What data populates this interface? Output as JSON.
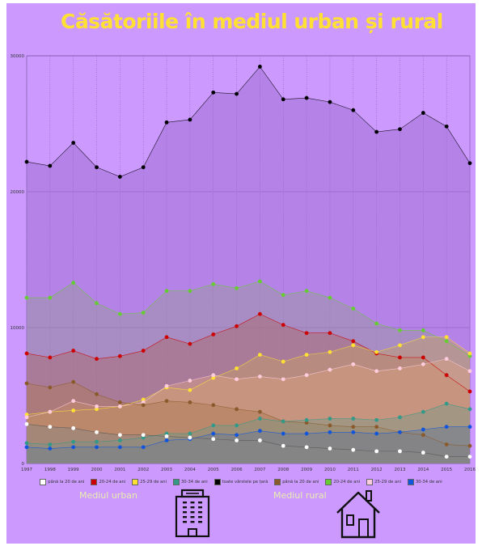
{
  "title": "Căsătoriile în mediul urban și rural",
  "labels": {
    "urban": "Mediul urban",
    "rural": "Mediul rural"
  },
  "icons": {
    "urban": "apartment-building-icon",
    "rural": "house-icon"
  },
  "colors": {
    "background": "#cc99ff",
    "title": "#ffe033"
  },
  "chart_data": {
    "type": "area",
    "x": [
      "1997",
      "1998",
      "1999",
      "2000",
      "2001",
      "2002",
      "2003",
      "2004",
      "2005",
      "2006",
      "2007",
      "2008",
      "2009",
      "2010",
      "2011",
      "2012",
      "2013",
      "2014",
      "2015",
      "2016"
    ],
    "ylim": [
      0,
      30000
    ],
    "yticks": [
      0,
      10000,
      20000,
      30000
    ],
    "grid": true,
    "legend_placement": "bottom",
    "series": [
      {
        "name": "toate vârstele pe țară",
        "color": "#000000",
        "fill": "#9966cc",
        "values": [
          22200,
          21900,
          23600,
          21800,
          21100,
          21800,
          25100,
          25300,
          27300,
          27200,
          29200,
          26800,
          26900,
          26600,
          26000,
          24400,
          24600,
          25800,
          24800,
          22100
        ]
      },
      {
        "name": "20-24 de ani",
        "color": "#66cc33",
        "fill": "#999999",
        "values": [
          12200,
          12200,
          13300,
          11800,
          11000,
          11100,
          12700,
          12700,
          13200,
          12900,
          13400,
          12400,
          12700,
          12200,
          11400,
          10300,
          9800,
          9800,
          9000,
          7900
        ]
      },
      {
        "name": "20-24 de ani",
        "color": "#cc0000",
        "fill": "#aa6666",
        "values": [
          8100,
          7800,
          8300,
          7700,
          7900,
          8300,
          9300,
          8800,
          9500,
          10100,
          11000,
          10200,
          9600,
          9600,
          9000,
          8100,
          7800,
          7800,
          6500,
          5300
        ]
      },
      {
        "name": "25-29 de ani",
        "color": "#ffe033",
        "fill": "#c8a060",
        "values": [
          3600,
          3800,
          3900,
          4000,
          4200,
          4700,
          5600,
          5400,
          6300,
          7000,
          8000,
          7500,
          8000,
          8200,
          8700,
          8200,
          8700,
          9300,
          9300,
          8100
        ]
      },
      {
        "name": "25-29 de ani",
        "color": "#ffccdd",
        "fill": "#d9a080",
        "values": [
          3400,
          3800,
          4600,
          4200,
          4200,
          4500,
          5700,
          6100,
          6500,
          6200,
          6400,
          6200,
          6500,
          6900,
          7300,
          6800,
          7000,
          7300,
          7700,
          6800
        ]
      },
      {
        "name": "până la 20 de ani",
        "color": "#8b5a2b",
        "fill": "#b07a55",
        "values": [
          5900,
          5600,
          6000,
          5100,
          4500,
          4300,
          4600,
          4500,
          4300,
          4000,
          3800,
          3100,
          3000,
          2800,
          2700,
          2700,
          2300,
          2100,
          1400,
          1300
        ]
      },
      {
        "name": "30-34 de ani",
        "color": "#339988",
        "fill": "#779988",
        "values": [
          1500,
          1400,
          1600,
          1600,
          1700,
          1900,
          2200,
          2200,
          2800,
          2800,
          3300,
          3100,
          3200,
          3300,
          3300,
          3200,
          3400,
          3800,
          4400,
          4000
        ]
      },
      {
        "name": "30-34 de ani",
        "color": "#1155dd",
        "fill": "#667799",
        "values": [
          1200,
          1100,
          1200,
          1200,
          1200,
          1200,
          1700,
          1800,
          2200,
          2100,
          2400,
          2200,
          2200,
          2300,
          2300,
          2200,
          2300,
          2500,
          2700,
          2700
        ]
      },
      {
        "name": "până la 20 de ani",
        "color": "#ffffff",
        "fill": "#888888",
        "values": [
          2900,
          2700,
          2600,
          2300,
          2100,
          2100,
          2000,
          1900,
          1800,
          1700,
          1700,
          1300,
          1200,
          1100,
          1000,
          900,
          900,
          800,
          500,
          500
        ]
      }
    ],
    "legend": [
      {
        "name": "până la 20 de ani",
        "color": "#ffffff"
      },
      {
        "name": "20-24 de ani",
        "color": "#cc0000"
      },
      {
        "name": "25-29 de ani",
        "color": "#ffe033"
      },
      {
        "name": "30-34 de ani",
        "color": "#339988"
      },
      {
        "name": "toate vârstele pe țară",
        "color": "#000000"
      },
      {
        "name": "până la 20 de ani",
        "color": "#8b5a2b"
      },
      {
        "name": "20-24 de ani",
        "color": "#66cc33"
      },
      {
        "name": "25-29 de ani",
        "color": "#ffccdd"
      },
      {
        "name": "30-34 de ani",
        "color": "#1155dd"
      }
    ]
  }
}
